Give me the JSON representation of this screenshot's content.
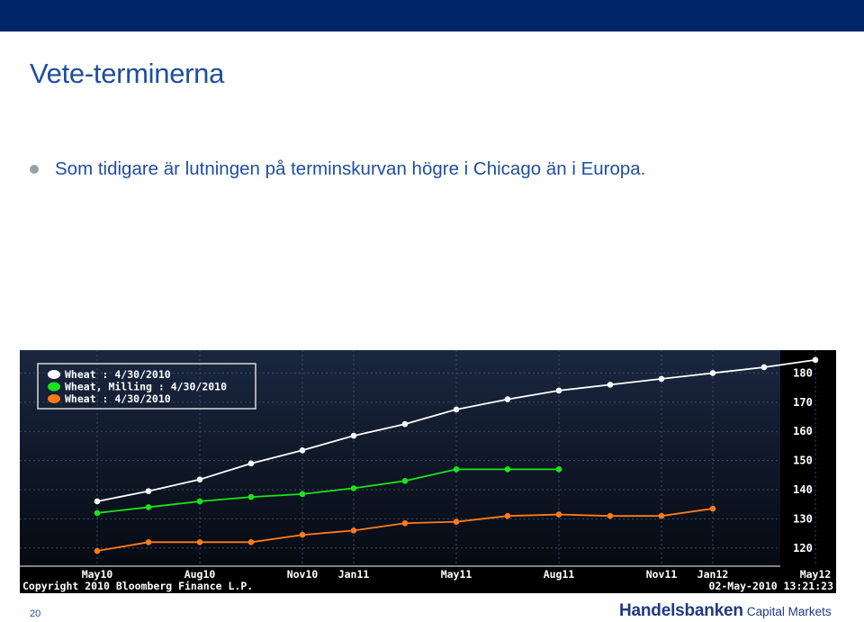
{
  "slide": {
    "title": "Vete-terminerna",
    "bullet": "Som tidigare är lutningen på terminskurvan högre i Chicago än i Europa.",
    "page_number": "20",
    "brand_main": "Handelsbanken",
    "brand_sub": "Capital Markets"
  },
  "colors": {
    "topbar": "#00266a",
    "title": "#1f4e9e",
    "chart_bg": "#000000",
    "series_white": "#ffffff",
    "series_green": "#19e619",
    "series_orange": "#ff7a1a"
  },
  "chart_data": {
    "type": "line",
    "source_note": "Copyright 2010 Bloomberg Finance L.P.",
    "timestamp": "02-May-2010 13:21:23",
    "x_tick_labels": [
      "May10",
      "Aug10",
      "Nov10",
      "Jan11",
      "May11",
      "Aug11",
      "Nov11",
      "Jan12",
      "May12"
    ],
    "x_tick_index": [
      0,
      2,
      4,
      5,
      7,
      9,
      11,
      12,
      14
    ],
    "y_ticks": [
      120,
      130,
      140,
      150,
      160,
      170,
      180
    ],
    "ylim": [
      115,
      186
    ],
    "legend_position": "top-left",
    "series": [
      {
        "name": "Wheat : 4/30/2010",
        "color": "#ffffff",
        "values": [
          136,
          139.5,
          143.5,
          149,
          153.5,
          158.5,
          162.5,
          167.5,
          171,
          174,
          176,
          178,
          180,
          182,
          184.5
        ]
      },
      {
        "name": "Wheat, Milling : 4/30/2010",
        "color": "#19e619",
        "values": [
          132,
          134,
          136,
          137.5,
          138.5,
          140.5,
          143,
          147,
          147,
          147
        ]
      },
      {
        "name": "Wheat : 4/30/2010",
        "color": "#ff7a1a",
        "values": [
          119,
          122,
          122,
          122,
          124.5,
          126,
          128.5,
          129,
          131,
          131.5,
          131,
          131,
          133.5
        ]
      }
    ],
    "series_x_index": [
      [
        0,
        1,
        2,
        3,
        4,
        5,
        6,
        7,
        8,
        9,
        10,
        11,
        12,
        13,
        14
      ],
      [
        0,
        1,
        2,
        3,
        4,
        5,
        6,
        7,
        8,
        9
      ],
      [
        0,
        1,
        2,
        3,
        4,
        5,
        6,
        7,
        8,
        9,
        10,
        11,
        12
      ]
    ]
  }
}
